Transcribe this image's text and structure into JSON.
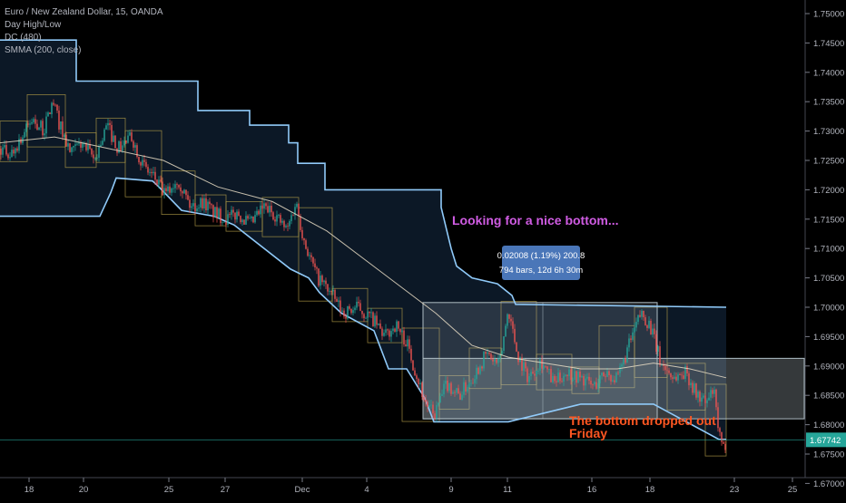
{
  "legend": {
    "symbol": "Euro / New Zealand Dollar, 15, OANDA",
    "indicator_1": "Day High/Low",
    "indicator_2": "DC (480)",
    "indicator_3": "SMMA (200, close)"
  },
  "colors": {
    "background": "#000000",
    "candle_up": "#26a69a",
    "candle_down": "#ef5350",
    "donchian": "#90caf9",
    "smma": "#e8dcc4",
    "day_box": "#b8a24a",
    "range_box": "#b0bec5",
    "annotation_pink": "#d05ce3",
    "annotation_orange": "#ff5722",
    "measure_box": "#4a76b8",
    "price_line": "#26a69a"
  },
  "chart_data": {
    "type": "line",
    "title": "Euro / New Zealand Dollar, 15, OANDA",
    "xlabel": "",
    "ylabel": "",
    "grid": false,
    "ylim": [
      1.6685,
      1.7532
    ],
    "x_ticks": [
      "18",
      "20",
      "25",
      "27",
      "Dec",
      "4",
      "9",
      "11",
      "16",
      "18",
      "23",
      "25"
    ],
    "y_ticks": [
      "1.75000",
      "1.74500",
      "1.74000",
      "1.73500",
      "1.73000",
      "1.72500",
      "1.72000",
      "1.71500",
      "1.71000",
      "1.70500",
      "1.70000",
      "1.69500",
      "1.69000",
      "1.68500",
      "1.68000",
      "1.67500",
      "1.67000"
    ],
    "last_price": "1.67742",
    "series": [
      {
        "name": "Price",
        "points": [
          [
            0,
            1.727
          ],
          [
            12,
            1.726
          ],
          [
            24,
            1.729
          ],
          [
            36,
            1.732
          ],
          [
            48,
            1.73
          ],
          [
            58,
            1.735
          ],
          [
            66,
            1.731
          ],
          [
            78,
            1.726
          ],
          [
            90,
            1.728
          ],
          [
            104,
            1.725
          ],
          [
            118,
            1.731
          ],
          [
            130,
            1.727
          ],
          [
            145,
            1.729
          ],
          [
            158,
            1.724
          ],
          [
            170,
            1.722
          ],
          [
            182,
            1.719
          ],
          [
            196,
            1.722
          ],
          [
            210,
            1.717
          ],
          [
            224,
            1.718
          ],
          [
            236,
            1.716
          ],
          [
            250,
            1.715
          ],
          [
            262,
            1.716
          ],
          [
            276,
            1.714
          ],
          [
            290,
            1.717
          ],
          [
            302,
            1.716
          ],
          [
            316,
            1.713
          ],
          [
            326,
            1.718
          ],
          [
            334,
            1.712
          ],
          [
            340,
            1.709
          ],
          [
            350,
            1.705
          ],
          [
            362,
            1.703
          ],
          [
            378,
            1.699
          ],
          [
            394,
            1.7
          ],
          [
            410,
            1.698
          ],
          [
            424,
            1.695
          ],
          [
            436,
            1.697
          ],
          [
            448,
            1.694
          ],
          [
            458,
            1.689
          ],
          [
            468,
            1.684
          ],
          [
            478,
            1.6815
          ],
          [
            492,
            1.687
          ],
          [
            506,
            1.685
          ],
          [
            520,
            1.688
          ],
          [
            536,
            1.692
          ],
          [
            550,
            1.69
          ],
          [
            560,
            1.6998
          ],
          [
            570,
            1.692
          ],
          [
            582,
            1.688
          ],
          [
            596,
            1.691
          ],
          [
            610,
            1.687
          ],
          [
            624,
            1.689
          ],
          [
            640,
            1.688
          ],
          [
            654,
            1.6865
          ],
          [
            668,
            1.689
          ],
          [
            680,
            1.6875
          ],
          [
            694,
            1.694
          ],
          [
            706,
            1.699
          ],
          [
            716,
            1.697
          ],
          [
            728,
            1.6905
          ],
          [
            742,
            1.688
          ],
          [
            756,
            1.689
          ],
          [
            766,
            1.6855
          ],
          [
            778,
            1.6835
          ],
          [
            786,
            1.686
          ],
          [
            792,
            1.6785
          ],
          [
            796,
            1.6755
          ],
          [
            800,
            1.677
          ]
        ]
      },
      {
        "name": "SMMA (200, close)",
        "points": [
          [
            0,
            1.728
          ],
          [
            60,
            1.729
          ],
          [
            120,
            1.727
          ],
          [
            180,
            1.725
          ],
          [
            240,
            1.7205
          ],
          [
            300,
            1.718
          ],
          [
            360,
            1.713
          ],
          [
            420,
            1.706
          ],
          [
            480,
            1.699
          ],
          [
            520,
            1.6935
          ],
          [
            560,
            1.6915
          ],
          [
            600,
            1.6905
          ],
          [
            640,
            1.6895
          ],
          [
            680,
            1.6895
          ],
          [
            720,
            1.6905
          ],
          [
            760,
            1.6895
          ],
          [
            800,
            1.688
          ]
        ]
      },
      {
        "name": "DC (480)",
        "upper": [
          [
            0,
            1.7455
          ],
          [
            84,
            1.7455
          ],
          [
            84,
            1.7385
          ],
          [
            218,
            1.7385
          ],
          [
            218,
            1.7335
          ],
          [
            275,
            1.7335
          ],
          [
            275,
            1.731
          ],
          [
            318,
            1.731
          ],
          [
            318,
            1.728
          ],
          [
            328,
            1.728
          ],
          [
            328,
            1.7245
          ],
          [
            358,
            1.7245
          ],
          [
            358,
            1.72
          ],
          [
            486,
            1.72
          ],
          [
            486,
            1.717
          ],
          [
            497,
            1.71
          ],
          [
            503,
            1.707
          ],
          [
            520,
            1.705
          ],
          [
            548,
            1.704
          ],
          [
            564,
            1.702
          ],
          [
            568,
            1.7005
          ],
          [
            800,
            1.7
          ]
        ],
        "lower": [
          [
            0,
            1.7155
          ],
          [
            110,
            1.7155
          ],
          [
            122,
            1.7195
          ],
          [
            128,
            1.722
          ],
          [
            168,
            1.7215
          ],
          [
            175,
            1.7205
          ],
          [
            200,
            1.7165
          ],
          [
            236,
            1.7155
          ],
          [
            258,
            1.714
          ],
          [
            320,
            1.7065
          ],
          [
            340,
            1.705
          ],
          [
            352,
            1.7025
          ],
          [
            376,
            1.699
          ],
          [
            412,
            1.696
          ],
          [
            428,
            1.6895
          ],
          [
            448,
            1.6895
          ],
          [
            468,
            1.6845
          ],
          [
            478,
            1.6805
          ],
          [
            560,
            1.6805
          ],
          [
            640,
            1.6835
          ],
          [
            720,
            1.6835
          ],
          [
            792,
            1.6775
          ],
          [
            800,
            1.6775
          ]
        ]
      }
    ],
    "annotations": [
      "Looking for a nice bottom...",
      "The bottom dropped out\nFriday"
    ],
    "measure_label": {
      "line1": "0.02008 (1.19%) 200.8",
      "line2": "794 bars, 12d 6h 30m"
    }
  }
}
